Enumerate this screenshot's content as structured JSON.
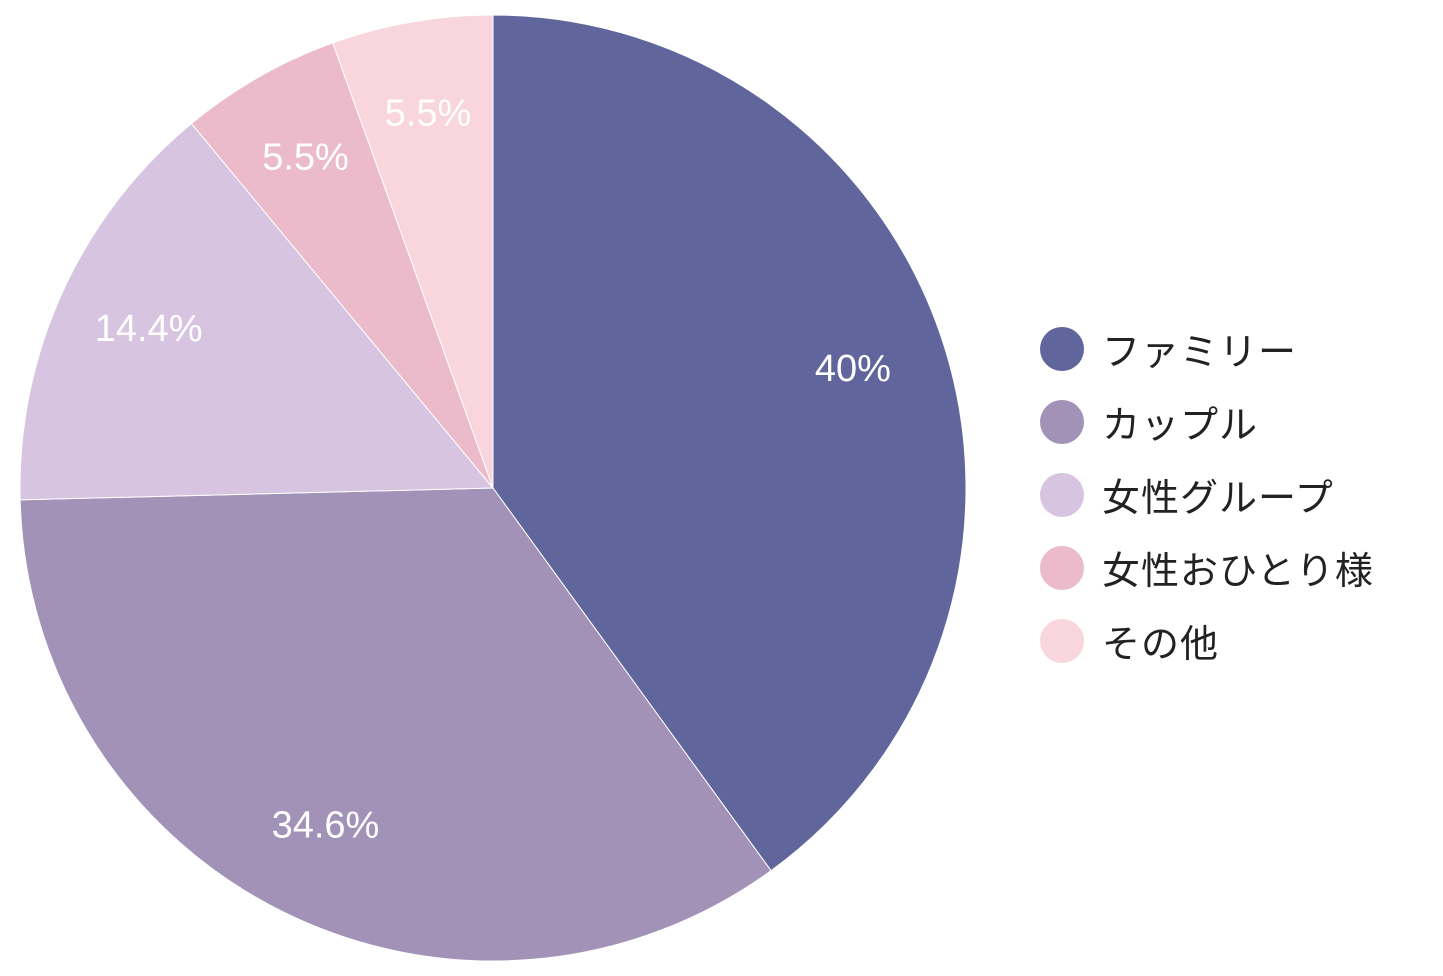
{
  "chart_data": {
    "type": "pie",
    "title": "",
    "categories": [
      "ファミリー",
      "カップル",
      "女性グループ",
      "女性おひとり様",
      "その他"
    ],
    "values": [
      40,
      34.6,
      14.4,
      5.5,
      5.5
    ],
    "value_labels": [
      "40%",
      "34.6%",
      "14.4%",
      "5.5%",
      "5.5%"
    ],
    "colors": [
      "#60669c",
      "#a292b8",
      "#d6c4e1",
      "#ebbacb",
      "#f9d5dd"
    ],
    "start": "12 o'clock",
    "direction": "clockwise",
    "legend_position": "right"
  }
}
